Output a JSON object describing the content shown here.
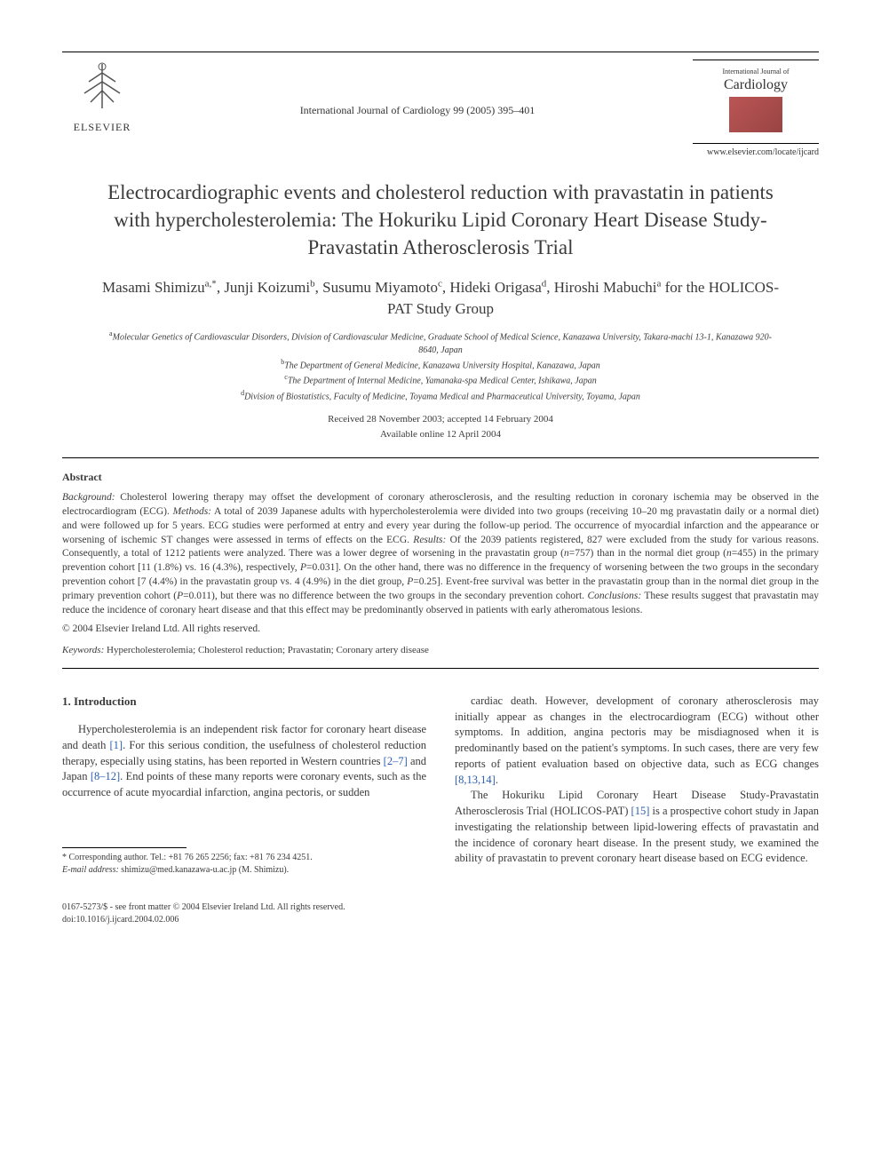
{
  "header": {
    "publisher_name": "ELSEVIER",
    "journal_citation": "International Journal of Cardiology 99 (2005) 395–401",
    "journal_small": "International Journal of",
    "journal_title": "Cardiology",
    "journal_url": "www.elsevier.com/locate/ijcard"
  },
  "article": {
    "title": "Electrocardiographic events and cholesterol reduction with pravastatin in patients with hypercholesterolemia: The Hokuriku Lipid Coronary Heart Disease Study-Pravastatin Atherosclerosis Trial",
    "authors_html": "Masami Shimizu<sup>a,*</sup>, Junji Koizumi<sup>b</sup>, Susumu Miyamoto<sup>c</sup>, Hideki Origasa<sup>d</sup>, Hiroshi Mabuchi<sup>a</sup> for the HOLICOS-PAT Study Group",
    "affiliations": [
      "<sup>a</sup>Molecular Genetics of Cardiovascular Disorders, Division of Cardiovascular Medicine, Graduate School of Medical Science, Kanazawa University, Takara-machi 13-1, Kanazawa 920-8640, Japan",
      "<sup>b</sup>The Department of General Medicine, Kanazawa University Hospital, Kanazawa, Japan",
      "<sup>c</sup>The Department of Internal Medicine, Yamanaka-spa Medical Center, Ishikawa, Japan",
      "<sup>d</sup>Division of Biostatistics, Faculty of Medicine, Toyama Medical and Pharmaceutical University, Toyama, Japan"
    ],
    "received": "Received 28 November 2003; accepted 14 February 2004",
    "available": "Available online 12 April 2004"
  },
  "abstract": {
    "heading": "Abstract",
    "body_html": "<i>Background:</i> Cholesterol lowering therapy may offset the development of coronary atherosclerosis, and the resulting reduction in coronary ischemia may be observed in the electrocardiogram (ECG). <i>Methods:</i> A total of 2039 Japanese adults with hypercholesterolemia were divided into two groups (receiving 10–20 mg pravastatin daily or a normal diet) and were followed up for 5 years. ECG studies were performed at entry and every year during the follow-up period. The occurrence of myocardial infarction and the appearance or worsening of ischemic ST changes were assessed in terms of effects on the ECG. <i>Results:</i> Of the 2039 patients registered, 827 were excluded from the study for various reasons. Consequently, a total of 1212 patients were analyzed. There was a lower degree of worsening in the pravastatin group (<i>n</i>=757) than in the normal diet group (<i>n</i>=455) in the primary prevention cohort [11 (1.8%) vs. 16 (4.3%), respectively, <i>P</i>=0.031]. On the other hand, there was no difference in the frequency of worsening between the two groups in the secondary prevention cohort [7 (4.4%) in the pravastatin group vs. 4 (4.9%) in the diet group, <i>P</i>=0.25]. Event-free survival was better in the pravastatin group than in the normal diet group in the primary prevention cohort (<i>P</i>=0.011), but there was no difference between the two groups in the secondary prevention cohort. <i>Conclusions:</i> These results suggest that pravastatin may reduce the incidence of coronary heart disease and that this effect may be predominantly observed in patients with early atheromatous lesions.",
    "copyright": "© 2004 Elsevier Ireland Ltd. All rights reserved.",
    "keywords_label": "Keywords:",
    "keywords": "Hypercholesterolemia; Cholesterol reduction; Pravastatin; Coronary artery disease"
  },
  "body": {
    "section_heading": "1. Introduction",
    "left_col_html": "Hypercholesterolemia is an independent risk factor for coronary heart disease and death <span class=\"ref-link\">[1]</span>. For this serious condition, the usefulness of cholesterol reduction therapy, especially using statins, has been reported in Western countries <span class=\"ref-link\">[2–7]</span> and Japan <span class=\"ref-link\">[8–12]</span>. End points of these many reports were coronary events, such as the occurrence of acute myocardial infarction, angina pectoris, or sudden",
    "right_col_p1_html": "cardiac death. However, development of coronary atherosclerosis may initially appear as changes in the electrocardiogram (ECG) without other symptoms. In addition, angina pectoris may be misdiagnosed when it is predominantly based on the patient's symptoms. In such cases, there are very few reports of patient evaluation based on objective data, such as ECG changes <span class=\"ref-link\">[8,13,14]</span>.",
    "right_col_p2_html": "The Hokuriku Lipid Coronary Heart Disease Study-Pravastatin Atherosclerosis Trial (HOLICOS-PAT) <span class=\"ref-link\">[15]</span> is a prospective cohort study in Japan investigating the relationship between lipid-lowering effects of pravastatin and the incidence of coronary heart disease. In the present study, we examined the ability of pravastatin to prevent coronary heart disease based on ECG evidence."
  },
  "footnote": {
    "corresponding": "* Corresponding author. Tel.: +81 76 265 2256; fax: +81 76 234 4251.",
    "email_label": "E-mail address:",
    "email": "shimizu@med.kanazawa-u.ac.jp (M. Shimizu)."
  },
  "footer": {
    "line1": "0167-5273/$ - see front matter © 2004 Elsevier Ireland Ltd. All rights reserved.",
    "line2": "doi:10.1016/j.ijcard.2004.02.006"
  },
  "colors": {
    "text": "#3a3a3a",
    "link": "#2a5db0",
    "cover_gradient_start": "#b55",
    "cover_gradient_end": "#944",
    "background": "#ffffff"
  },
  "typography": {
    "title_fontsize": 23,
    "authors_fontsize": 17,
    "body_fontsize": 12.5,
    "abstract_fontsize": 11.5,
    "affiliation_fontsize": 10,
    "footer_fontsize": 10
  }
}
